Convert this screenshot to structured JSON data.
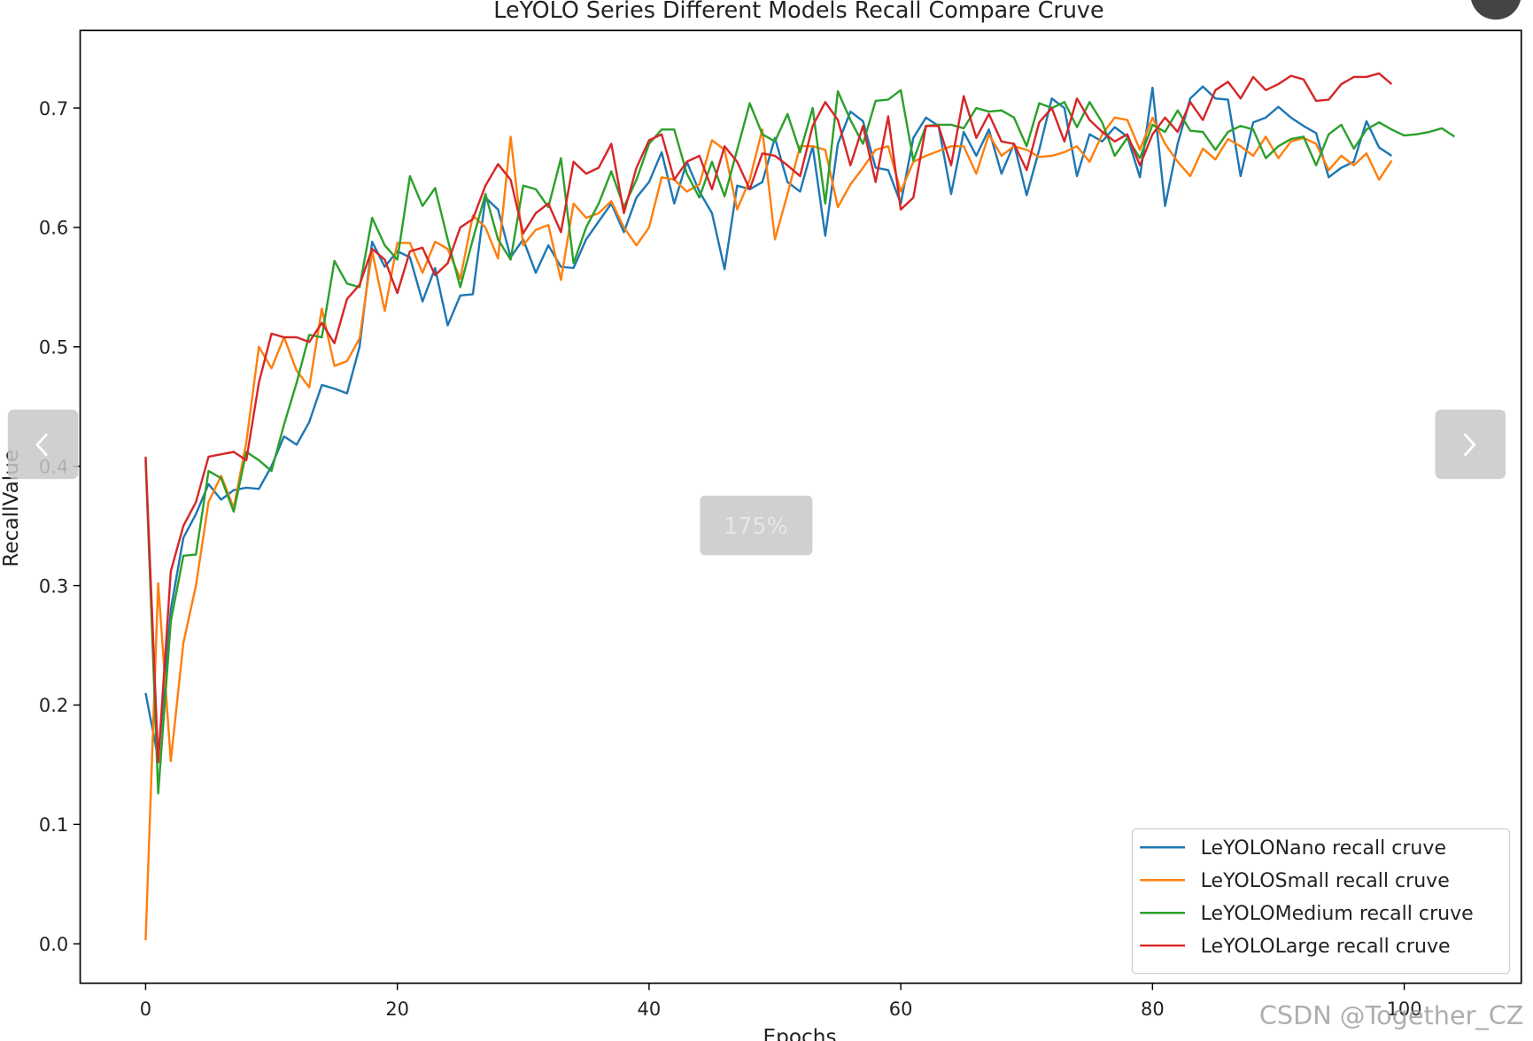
{
  "chart_data": {
    "type": "line",
    "title": "LeYOLO Series Different Models Recall Compare Cruve",
    "x_label": "Epochs",
    "y_label": "RecallValue",
    "x": [
      0,
      1,
      2,
      3,
      4,
      5,
      6,
      7,
      8,
      9,
      10,
      11,
      12,
      13,
      14,
      15,
      16,
      17,
      18,
      19,
      20,
      21,
      22,
      23,
      24,
      25,
      26,
      27,
      28,
      29,
      30,
      31,
      32,
      33,
      34,
      35,
      36,
      37,
      38,
      39,
      40,
      41,
      42,
      43,
      44,
      45,
      46,
      47,
      48,
      49,
      50,
      51,
      52,
      53,
      54,
      55,
      56,
      57,
      58,
      59,
      60,
      61,
      62,
      63,
      64,
      65,
      66,
      67,
      68,
      69,
      70,
      71,
      72,
      73,
      74,
      75,
      76,
      77,
      78,
      79,
      80,
      81,
      82,
      83,
      84,
      85,
      86,
      87,
      88,
      89,
      90,
      91,
      92,
      93,
      94,
      95,
      96,
      97,
      98,
      99,
      100,
      101,
      102,
      103,
      104
    ],
    "series": [
      {
        "name": "LeYOLONano recall cruve",
        "color": "#1f77b4",
        "values": [
          0.21,
          0.155,
          0.28,
          0.34,
          0.36,
          0.385,
          0.372,
          0.38,
          0.382,
          0.381,
          0.4,
          0.425,
          0.418,
          0.437,
          0.468,
          0.465,
          0.461,
          0.5,
          0.588,
          0.567,
          0.58,
          0.575,
          0.538,
          0.566,
          0.518,
          0.543,
          0.544,
          0.625,
          0.615,
          0.575,
          0.59,
          0.562,
          0.585,
          0.567,
          0.566,
          0.59,
          0.605,
          0.62,
          0.596,
          0.625,
          0.638,
          0.663,
          0.62,
          0.655,
          0.63,
          0.612,
          0.565,
          0.635,
          0.632,
          0.638,
          0.675,
          0.638,
          0.63,
          0.668,
          0.593,
          0.67,
          0.697,
          0.689,
          0.65,
          0.648,
          0.62,
          0.675,
          0.692,
          0.685,
          0.628,
          0.68,
          0.66,
          0.682,
          0.645,
          0.67,
          0.627,
          0.665,
          0.708,
          0.7,
          0.643,
          0.678,
          0.672,
          0.684,
          0.676,
          0.642,
          0.717,
          0.618,
          0.67,
          0.708,
          0.718,
          0.708,
          0.707,
          0.643,
          0.688,
          0.692,
          0.701,
          0.692,
          0.685,
          0.679,
          0.642,
          0.65,
          0.655,
          0.689,
          0.667,
          0.66,
          null,
          null,
          null,
          null,
          null
        ]
      },
      {
        "name": "LeYOLOSmall recall cruve",
        "color": "#ff7f0e",
        "values": [
          0.003,
          0.302,
          0.153,
          0.252,
          0.3,
          0.37,
          0.392,
          0.365,
          0.42,
          0.5,
          0.482,
          0.508,
          0.48,
          0.466,
          0.532,
          0.484,
          0.488,
          0.507,
          0.58,
          0.53,
          0.587,
          0.587,
          0.562,
          0.588,
          0.582,
          0.557,
          0.61,
          0.6,
          0.574,
          0.676,
          0.585,
          0.598,
          0.602,
          0.556,
          0.62,
          0.608,
          0.612,
          0.622,
          0.6,
          0.585,
          0.6,
          0.642,
          0.64,
          0.63,
          0.636,
          0.673,
          0.665,
          0.615,
          0.64,
          0.682,
          0.59,
          0.628,
          0.668,
          0.668,
          0.665,
          0.617,
          0.636,
          0.65,
          0.665,
          0.668,
          0.63,
          0.655,
          0.66,
          0.664,
          0.668,
          0.668,
          0.645,
          0.678,
          0.66,
          0.668,
          0.665,
          0.659,
          0.66,
          0.663,
          0.668,
          0.655,
          0.678,
          0.692,
          0.69,
          0.665,
          0.692,
          0.67,
          0.655,
          0.643,
          0.666,
          0.657,
          0.674,
          0.668,
          0.66,
          0.676,
          0.658,
          0.672,
          0.675,
          0.67,
          0.648,
          0.66,
          0.652,
          0.662,
          0.64,
          0.656,
          null,
          null,
          null,
          null,
          null
        ]
      },
      {
        "name": "LeYOLOMedium recall cruve",
        "color": "#2ca02c",
        "values": [
          0.405,
          0.126,
          0.27,
          0.325,
          0.326,
          0.396,
          0.39,
          0.362,
          0.412,
          0.405,
          0.396,
          0.435,
          0.47,
          0.51,
          0.508,
          0.572,
          0.553,
          0.55,
          0.608,
          0.585,
          0.573,
          0.643,
          0.618,
          0.633,
          0.59,
          0.55,
          0.59,
          0.628,
          0.59,
          0.573,
          0.635,
          0.632,
          0.617,
          0.658,
          0.57,
          0.6,
          0.62,
          0.647,
          0.617,
          0.64,
          0.67,
          0.682,
          0.682,
          0.645,
          0.625,
          0.655,
          0.626,
          0.665,
          0.704,
          0.678,
          0.672,
          0.695,
          0.663,
          0.7,
          0.62,
          0.714,
          0.69,
          0.67,
          0.706,
          0.707,
          0.715,
          0.656,
          0.685,
          0.686,
          0.686,
          0.683,
          0.7,
          0.697,
          0.698,
          0.692,
          0.668,
          0.704,
          0.7,
          0.705,
          0.684,
          0.705,
          0.688,
          0.66,
          0.675,
          0.658,
          0.686,
          0.68,
          0.698,
          0.681,
          0.68,
          0.665,
          0.68,
          0.685,
          0.682,
          0.658,
          0.668,
          0.674,
          0.676,
          0.652,
          0.678,
          0.686,
          0.666,
          0.682,
          0.688,
          0.682,
          0.677,
          0.678,
          0.68,
          0.683,
          0.676
        ]
      },
      {
        "name": "LeYOLOLarge recall cruve",
        "color": "#d62728",
        "values": [
          0.408,
          0.152,
          0.312,
          0.35,
          0.37,
          0.408,
          0.41,
          0.412,
          0.405,
          0.47,
          0.511,
          0.508,
          0.508,
          0.504,
          0.52,
          0.503,
          0.54,
          0.552,
          0.582,
          0.573,
          0.545,
          0.58,
          0.583,
          0.56,
          0.57,
          0.6,
          0.607,
          0.635,
          0.653,
          0.64,
          0.595,
          0.612,
          0.62,
          0.596,
          0.655,
          0.645,
          0.65,
          0.67,
          0.612,
          0.65,
          0.673,
          0.678,
          0.64,
          0.655,
          0.66,
          0.632,
          0.668,
          0.655,
          0.632,
          0.662,
          0.66,
          0.652,
          0.643,
          0.685,
          0.705,
          0.69,
          0.652,
          0.685,
          0.638,
          0.693,
          0.615,
          0.625,
          0.685,
          0.685,
          0.652,
          0.71,
          0.675,
          0.695,
          0.672,
          0.67,
          0.648,
          0.688,
          0.7,
          0.672,
          0.708,
          0.69,
          0.68,
          0.672,
          0.678,
          0.652,
          0.678,
          0.692,
          0.68,
          0.705,
          0.69,
          0.715,
          0.722,
          0.708,
          0.726,
          0.715,
          0.72,
          0.727,
          0.724,
          0.706,
          0.707,
          0.72,
          0.726,
          0.726,
          0.729,
          0.72,
          null,
          null,
          null,
          null,
          null
        ]
      }
    ],
    "xlim": [
      -5.2,
      109.3
    ],
    "ylim": [
      -0.033,
      0.765
    ],
    "xticks": [
      0,
      20,
      40,
      60,
      80,
      100
    ],
    "yticks": [
      {
        "value": 0,
        "label": "0.0"
      },
      0.1,
      0.2,
      0.3,
      0.4,
      0.5,
      0.6,
      0.7
    ],
    "legend": "lower right"
  },
  "viewer": {
    "zoom_label": "175%",
    "watermark": "CSDN @Together_CZ"
  }
}
